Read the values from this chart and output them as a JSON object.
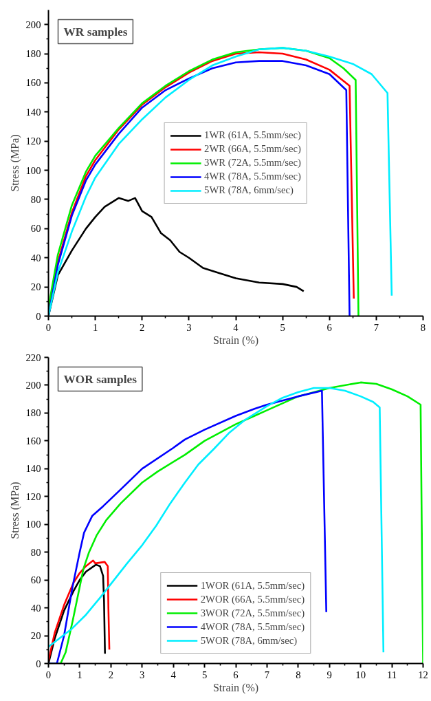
{
  "chart_data": [
    {
      "type": "line",
      "title": "WR samples",
      "xlabel": "Strain (%)",
      "ylabel": "Stress (MPa)",
      "xlim": [
        0,
        8
      ],
      "ylim": [
        0,
        210
      ],
      "xticks": [
        0,
        1,
        2,
        3,
        4,
        5,
        6,
        7,
        8
      ],
      "yticks": [
        0,
        20,
        40,
        60,
        80,
        100,
        120,
        140,
        160,
        180,
        200
      ],
      "grid": false,
      "legend": "center",
      "line_style": "solid",
      "marker": "none",
      "series": [
        {
          "name": "1WR (61A, 5.5mm/sec)",
          "color": "#000000",
          "x": [
            0,
            0.2,
            0.5,
            0.8,
            1.0,
            1.2,
            1.5,
            1.7,
            1.85,
            2.0,
            2.2,
            2.4,
            2.6,
            2.8,
            3.0,
            3.3,
            3.6,
            4.0,
            4.5,
            5.0,
            5.3,
            5.45
          ],
          "values": [
            0,
            28,
            45,
            60,
            68,
            75,
            81,
            79,
            81,
            72,
            68,
            57,
            52,
            44,
            40,
            33,
            30,
            26,
            23,
            22,
            20,
            17
          ]
        },
        {
          "name": "2WR (66A, 5.5mm/sec)",
          "color": "#ff0000",
          "x": [
            0,
            0.2,
            0.5,
            0.8,
            1.0,
            1.5,
            2.0,
            2.5,
            3.0,
            3.5,
            4.0,
            4.5,
            5.0,
            5.5,
            6.0,
            6.43,
            6.52
          ],
          "values": [
            0,
            37,
            71,
            96,
            107,
            128,
            145,
            157,
            167,
            175,
            180,
            181,
            180,
            176,
            169,
            158,
            12
          ]
        },
        {
          "name": "3WR (72A, 5.5mm/sec)",
          "color": "#00ee00",
          "x": [
            0,
            0.2,
            0.5,
            0.8,
            1.0,
            1.5,
            2.0,
            2.5,
            3.0,
            3.5,
            4.0,
            4.5,
            5.0,
            5.5,
            6.0,
            6.3,
            6.56,
            6.62
          ],
          "values": [
            6,
            42,
            76,
            99,
            110,
            129,
            146,
            158,
            168,
            176,
            181,
            183,
            184,
            182,
            177,
            170,
            162,
            0
          ]
        },
        {
          "name": "4WR (78A, 5.5mm/sec)",
          "color": "#0000ff",
          "x": [
            0,
            0.2,
            0.5,
            0.8,
            1.0,
            1.5,
            2.0,
            2.5,
            3.0,
            3.5,
            4.0,
            4.5,
            5.0,
            5.5,
            6.0,
            6.36,
            6.43
          ],
          "values": [
            0,
            35,
            69,
            93,
            104,
            125,
            143,
            155,
            163,
            170,
            174,
            175,
            175,
            172,
            166,
            155,
            0
          ]
        },
        {
          "name": "5WR (78A, 6mm/sec)",
          "color": "#00eeff",
          "x": [
            0,
            0.2,
            0.5,
            0.8,
            1.0,
            1.5,
            2.0,
            2.5,
            3.0,
            3.5,
            4.0,
            4.5,
            5.0,
            5.5,
            6.0,
            6.5,
            6.9,
            7.24,
            7.33
          ],
          "values": [
            0,
            30,
            58,
            82,
            95,
            118,
            135,
            150,
            162,
            172,
            178,
            183,
            184,
            182,
            178,
            173,
            166,
            153,
            14
          ]
        }
      ]
    },
    {
      "type": "line",
      "title": "WOR samples",
      "xlabel": "Strain (%)",
      "ylabel": "Stress (MPa)",
      "xlim": [
        0,
        12
      ],
      "ylim": [
        0,
        220
      ],
      "xticks": [
        0,
        1,
        2,
        3,
        4,
        5,
        6,
        7,
        8,
        9,
        10,
        11,
        12
      ],
      "yticks": [
        0,
        20,
        40,
        60,
        80,
        100,
        120,
        140,
        160,
        180,
        200,
        220
      ],
      "grid": false,
      "legend": "bottom",
      "line_style": "solid",
      "marker": "none",
      "series": [
        {
          "name": "1WOR (61A, 5.5mm/sec)",
          "color": "#000000",
          "x": [
            0,
            0.2,
            0.5,
            0.8,
            1.0,
            1.2,
            1.52,
            1.65,
            1.75,
            1.78,
            1.81
          ],
          "values": [
            0,
            18,
            38,
            52,
            60,
            66,
            71,
            70,
            63,
            45,
            7
          ]
        },
        {
          "name": "2WOR (66A, 5.5mm/sec)",
          "color": "#ff0000",
          "x": [
            0,
            0.2,
            0.5,
            0.8,
            1.0,
            1.2,
            1.43,
            1.5,
            1.8,
            1.9,
            1.92,
            1.95
          ],
          "values": [
            2,
            22,
            42,
            58,
            65,
            70,
            74,
            72,
            73,
            70,
            40,
            10
          ]
        },
        {
          "name": "3WOR (72A, 5.5mm/sec)",
          "color": "#00ee00",
          "x": [
            0,
            0.39,
            0.55,
            0.77,
            1.0,
            1.12,
            1.3,
            1.54,
            1.85,
            2.31,
            3,
            3.5,
            4.37,
            5,
            6,
            6.6,
            7,
            8,
            9,
            10,
            10.5,
            11,
            11.5,
            11.92,
            12
          ],
          "values": [
            0,
            0,
            8,
            30,
            55,
            68,
            80,
            92,
            103,
            115,
            130,
            138,
            150,
            160,
            172,
            178,
            182,
            192,
            198,
            202,
            201,
            197,
            192,
            186,
            0
          ]
        },
        {
          "name": "4WOR (78A, 5.5mm/sec)",
          "color": "#0000ff",
          "x": [
            0,
            0.27,
            0.5,
            0.77,
            1.0,
            1.14,
            1.4,
            1.75,
            2.31,
            3,
            4,
            4.37,
            5,
            6,
            6.6,
            7,
            8,
            8.76,
            8.9
          ],
          "values": [
            0,
            0,
            20,
            55,
            80,
            94,
            106,
            113,
            125,
            140,
            155,
            161,
            168,
            178,
            183,
            186,
            192,
            196,
            37
          ]
        },
        {
          "name": "5WOR (78A, 6mm/sec)",
          "color": "#00eeff",
          "x": [
            0,
            0.75,
            1.2,
            1.68,
            2.1,
            2.52,
            3,
            3.45,
            3.9,
            4.37,
            4.8,
            5.29,
            5.8,
            6.29,
            7,
            7.5,
            8,
            8.5,
            9,
            9.5,
            10,
            10.4,
            10.61,
            10.73
          ],
          "values": [
            12,
            25,
            35,
            48,
            60,
            72,
            85,
            99,
            115,
            130,
            143,
            154,
            166,
            175,
            185,
            191,
            195,
            198,
            198,
            196,
            192,
            188,
            184,
            8
          ]
        }
      ]
    }
  ]
}
